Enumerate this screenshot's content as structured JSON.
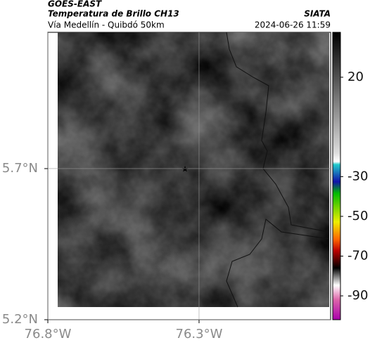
{
  "header": {
    "source": "GOES-EAST",
    "title": "Temperatura de Brillo CH13",
    "subtitle": "Vía Medellín - Quibdó 50km",
    "brand": "SIATA",
    "timestamp": "2024-06-26 11:59"
  },
  "map": {
    "xlim": [
      -76.8,
      -75.865
    ],
    "ylim": [
      5.2,
      6.151
    ],
    "xticks": [
      {
        "value": -76.8,
        "label": "76.8°W"
      },
      {
        "value": -76.3,
        "label": "76.3°W"
      }
    ],
    "yticks": [
      {
        "value": 5.2,
        "label": "5.2°N"
      },
      {
        "value": 5.7,
        "label": "5.7°N"
      }
    ]
  },
  "colorbar": {
    "lim": [
      -102,
      42.6
    ],
    "ticks": [
      20,
      -30,
      -50,
      -70,
      -90
    ]
  }
}
